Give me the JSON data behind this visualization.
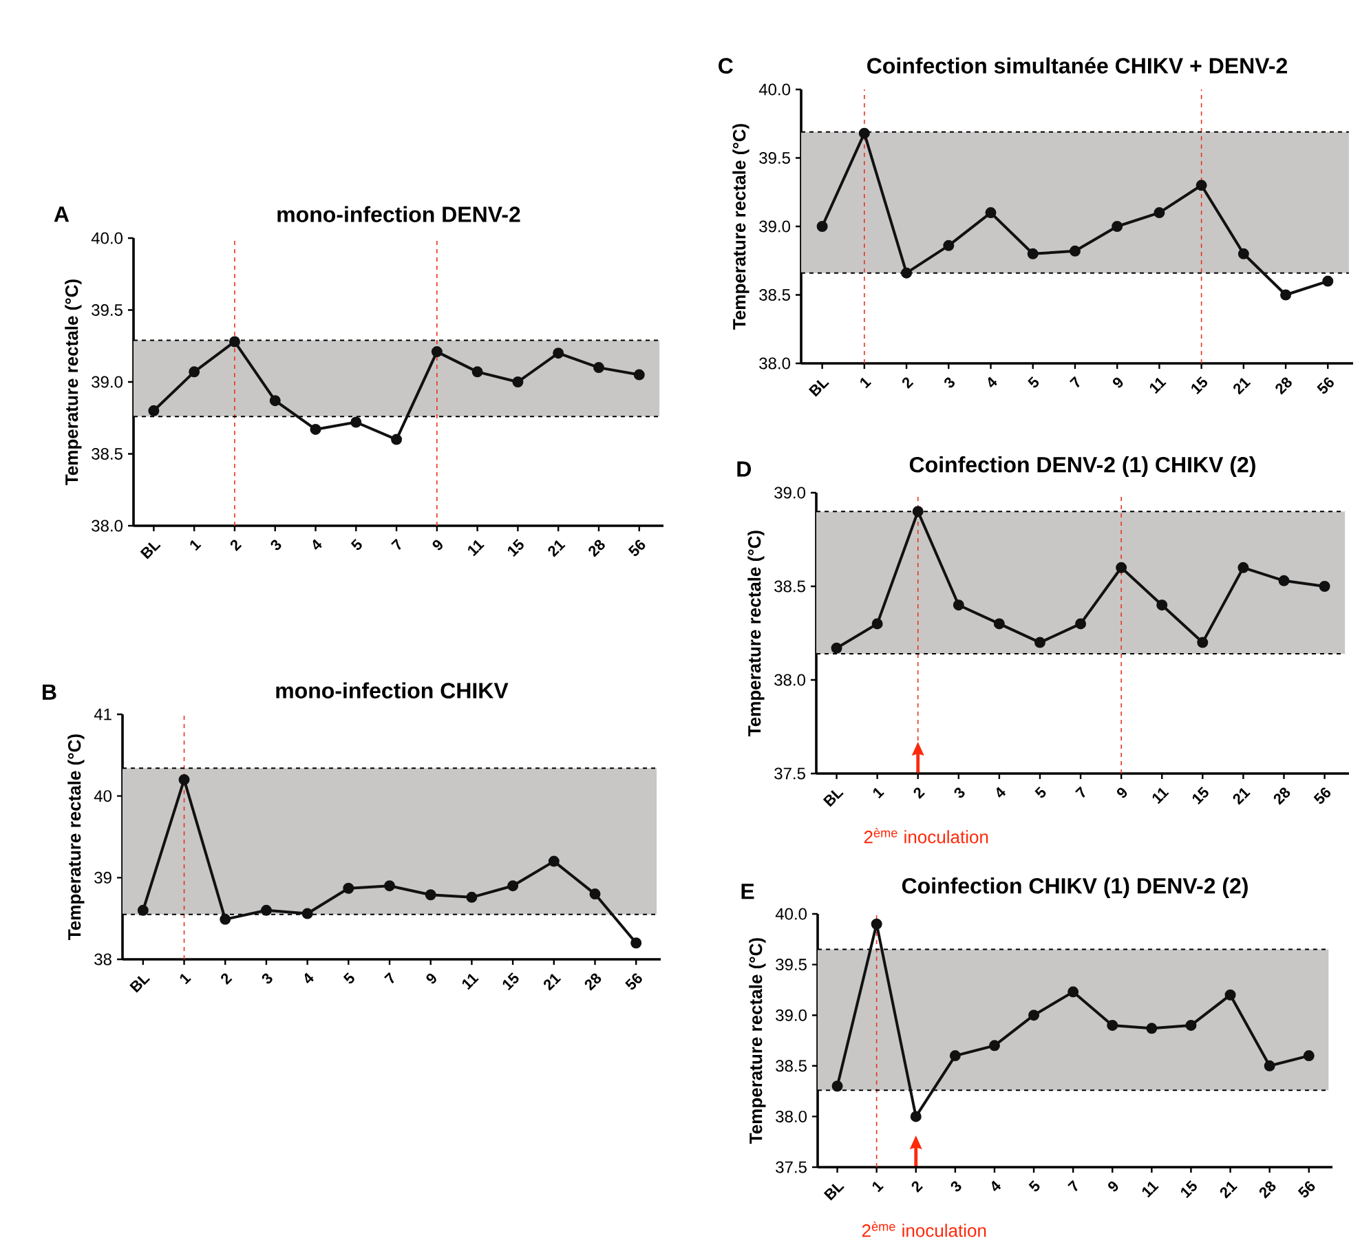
{
  "chart_data": [
    {
      "type": "line",
      "title": "mono-infection DENV-2",
      "ylabel": "Temperature rectale (°C)",
      "annotations": [
        "A"
      ],
      "categories": [
        "BL",
        "1",
        "2",
        "3",
        "4",
        "5",
        "7",
        "9",
        "11",
        "15",
        "21",
        "28",
        "56"
      ],
      "series": [
        {
          "color": "#111111",
          "values": [
            38.8,
            39.07,
            39.28,
            38.87,
            38.67,
            38.72,
            38.6,
            39.21,
            39.07,
            39.0,
            39.2,
            39.1,
            39.05
          ]
        }
      ],
      "ylim": [
        38,
        40
      ],
      "yticks": [
        {
          "value": 38,
          "label": "38.0"
        },
        {
          "value": 38.5,
          "label": "38.5"
        },
        {
          "value": 39,
          "label": "39.0"
        },
        {
          "value": 39.5,
          "label": "39.5"
        },
        {
          "value": 40,
          "label": "40.0"
        }
      ],
      "bands": [
        {
          "axis": "y",
          "from": 38.76,
          "to": 39.29,
          "color": "#c8c7c6"
        }
      ],
      "ref_lines": [
        {
          "axis": "x",
          "value": "2",
          "color": "#e8321e",
          "line_style": "dashed"
        },
        {
          "axis": "x",
          "value": "9",
          "color": "#e8321e",
          "line_style": "dashed"
        },
        {
          "axis": "y",
          "value": 38.76,
          "color": "#000000",
          "line_style": "dashed"
        },
        {
          "axis": "y",
          "value": 39.29,
          "color": "#000000",
          "line_style": "dashed"
        }
      ],
      "marker": "circle",
      "line_style": "solid"
    },
    {
      "type": "line",
      "title": "mono-infection CHIKV",
      "ylabel": "Temperature rectale (°C)",
      "annotations": [
        "B"
      ],
      "categories": [
        "BL",
        "1",
        "2",
        "3",
        "4",
        "5",
        "7",
        "9",
        "11",
        "15",
        "21",
        "28",
        "56"
      ],
      "series": [
        {
          "color": "#111111",
          "values": [
            38.6,
            40.2,
            38.49,
            38.6,
            38.56,
            38.87,
            38.9,
            38.79,
            38.76,
            38.9,
            39.2,
            38.8,
            38.2
          ]
        }
      ],
      "ylim": [
        38,
        41
      ],
      "yticks": [
        38,
        39,
        40,
        41
      ],
      "bands": [
        {
          "axis": "y",
          "from": 38.55,
          "to": 40.34,
          "color": "#c8c7c6"
        }
      ],
      "ref_lines": [
        {
          "axis": "x",
          "value": "1",
          "color": "#e8321e",
          "line_style": "dashed"
        },
        {
          "axis": "y",
          "value": 38.55,
          "color": "#000000",
          "line_style": "dashed"
        },
        {
          "axis": "y",
          "value": 40.34,
          "color": "#000000",
          "line_style": "dashed"
        }
      ],
      "marker": "circle",
      "line_style": "solid"
    },
    {
      "type": "line",
      "title": "Coinfection simultanée CHIKV + DENV-2",
      "ylabel": "Temperature rectale (°C)",
      "annotations": [
        "C"
      ],
      "categories": [
        "BL",
        "1",
        "2",
        "3",
        "4",
        "5",
        "7",
        "9",
        "11",
        "15",
        "21",
        "28",
        "56"
      ],
      "series": [
        {
          "color": "#111111",
          "values": [
            39.0,
            39.68,
            38.66,
            38.86,
            39.1,
            38.8,
            38.82,
            39.0,
            39.1,
            39.3,
            38.8,
            38.5,
            38.6
          ]
        }
      ],
      "ylim": [
        38,
        40
      ],
      "yticks": [
        {
          "value": 38,
          "label": "38.0"
        },
        {
          "value": 38.5,
          "label": "38.5"
        },
        {
          "value": 39,
          "label": "39.0"
        },
        {
          "value": 39.5,
          "label": "39.5"
        },
        {
          "value": 40,
          "label": "40.0"
        }
      ],
      "bands": [
        {
          "axis": "y",
          "from": 38.66,
          "to": 39.69,
          "color": "#c8c7c6"
        }
      ],
      "ref_lines": [
        {
          "axis": "x",
          "value": "1",
          "color": "#e8321e",
          "line_style": "dashed"
        },
        {
          "axis": "x",
          "value": "15",
          "color": "#e8321e",
          "line_style": "dashed"
        },
        {
          "axis": "y",
          "value": 38.66,
          "color": "#000000",
          "line_style": "dashed"
        },
        {
          "axis": "y",
          "value": 39.69,
          "color": "#000000",
          "line_style": "dashed"
        }
      ],
      "marker": "circle",
      "line_style": "solid"
    },
    {
      "type": "line",
      "title": "Coinfection DENV-2 (1) CHIKV (2)",
      "ylabel": "Temperature rectale (°C)",
      "annotations": [
        "D",
        "2$^{ème}$ inoculation"
      ],
      "categories": [
        "BL",
        "1",
        "2",
        "3",
        "4",
        "5",
        "7",
        "9",
        "11",
        "15",
        "21",
        "28",
        "56"
      ],
      "series": [
        {
          "color": "#111111",
          "values": [
            38.17,
            38.3,
            38.9,
            38.4,
            38.3,
            38.2,
            38.3,
            38.6,
            38.4,
            38.2,
            38.6,
            38.53,
            38.5
          ]
        }
      ],
      "ylim": [
        37.5,
        39
      ],
      "yticks": [
        {
          "value": 37.5,
          "label": "37.5"
        },
        {
          "value": 38,
          "label": "38.0"
        },
        {
          "value": 38.5,
          "label": "38.5"
        },
        {
          "value": 39,
          "label": "39.0"
        }
      ],
      "bands": [
        {
          "axis": "y",
          "from": 38.14,
          "to": 38.9,
          "color": "#c8c7c6"
        }
      ],
      "ref_lines": [
        {
          "axis": "x",
          "value": "2",
          "color": "#e8321e",
          "line_style": "dashed"
        },
        {
          "axis": "x",
          "value": "9",
          "color": "#e8321e",
          "line_style": "dashed"
        },
        {
          "axis": "y",
          "value": 38.14,
          "color": "#000000",
          "line_style": "dashed"
        },
        {
          "axis": "y",
          "value": 38.9,
          "color": "#000000",
          "line_style": "dashed"
        }
      ],
      "marker": "circle",
      "line_style": "solid"
    },
    {
      "type": "line",
      "title": "Coinfection CHIKV (1) DENV-2 (2)",
      "ylabel": "Temperature rectale (°C)",
      "annotations": [
        "E",
        "2$^{ème}$ inoculation"
      ],
      "categories": [
        "BL",
        "1",
        "2",
        "3",
        "4",
        "5",
        "7",
        "9",
        "11",
        "15",
        "21",
        "28",
        "56"
      ],
      "series": [
        {
          "color": "#111111",
          "values": [
            38.3,
            39.9,
            38.0,
            38.6,
            38.7,
            39.0,
            39.23,
            38.9,
            38.87,
            38.9,
            39.2,
            38.5,
            38.6
          ]
        }
      ],
      "ylim": [
        37.5,
        40
      ],
      "yticks": [
        {
          "value": 37.5,
          "label": "37.5"
        },
        {
          "value": 38,
          "label": "38.0"
        },
        {
          "value": 38.5,
          "label": "38.5"
        },
        {
          "value": 39,
          "label": "39.0"
        },
        {
          "value": 39.5,
          "label": "39.5"
        },
        {
          "value": 40,
          "label": "40.0"
        }
      ],
      "bands": [
        {
          "axis": "y",
          "from": 38.26,
          "to": 39.65,
          "color": "#c8c7c6"
        }
      ],
      "ref_lines": [
        {
          "axis": "x",
          "value": "1",
          "color": "#e8321e",
          "line_style": "dashed"
        },
        {
          "axis": "y",
          "value": 38.26,
          "color": "#000000",
          "line_style": "dashed"
        },
        {
          "axis": "y",
          "value": 39.65,
          "color": "#000000",
          "line_style": "dashed"
        }
      ],
      "marker": "circle",
      "line_style": "solid"
    }
  ]
}
